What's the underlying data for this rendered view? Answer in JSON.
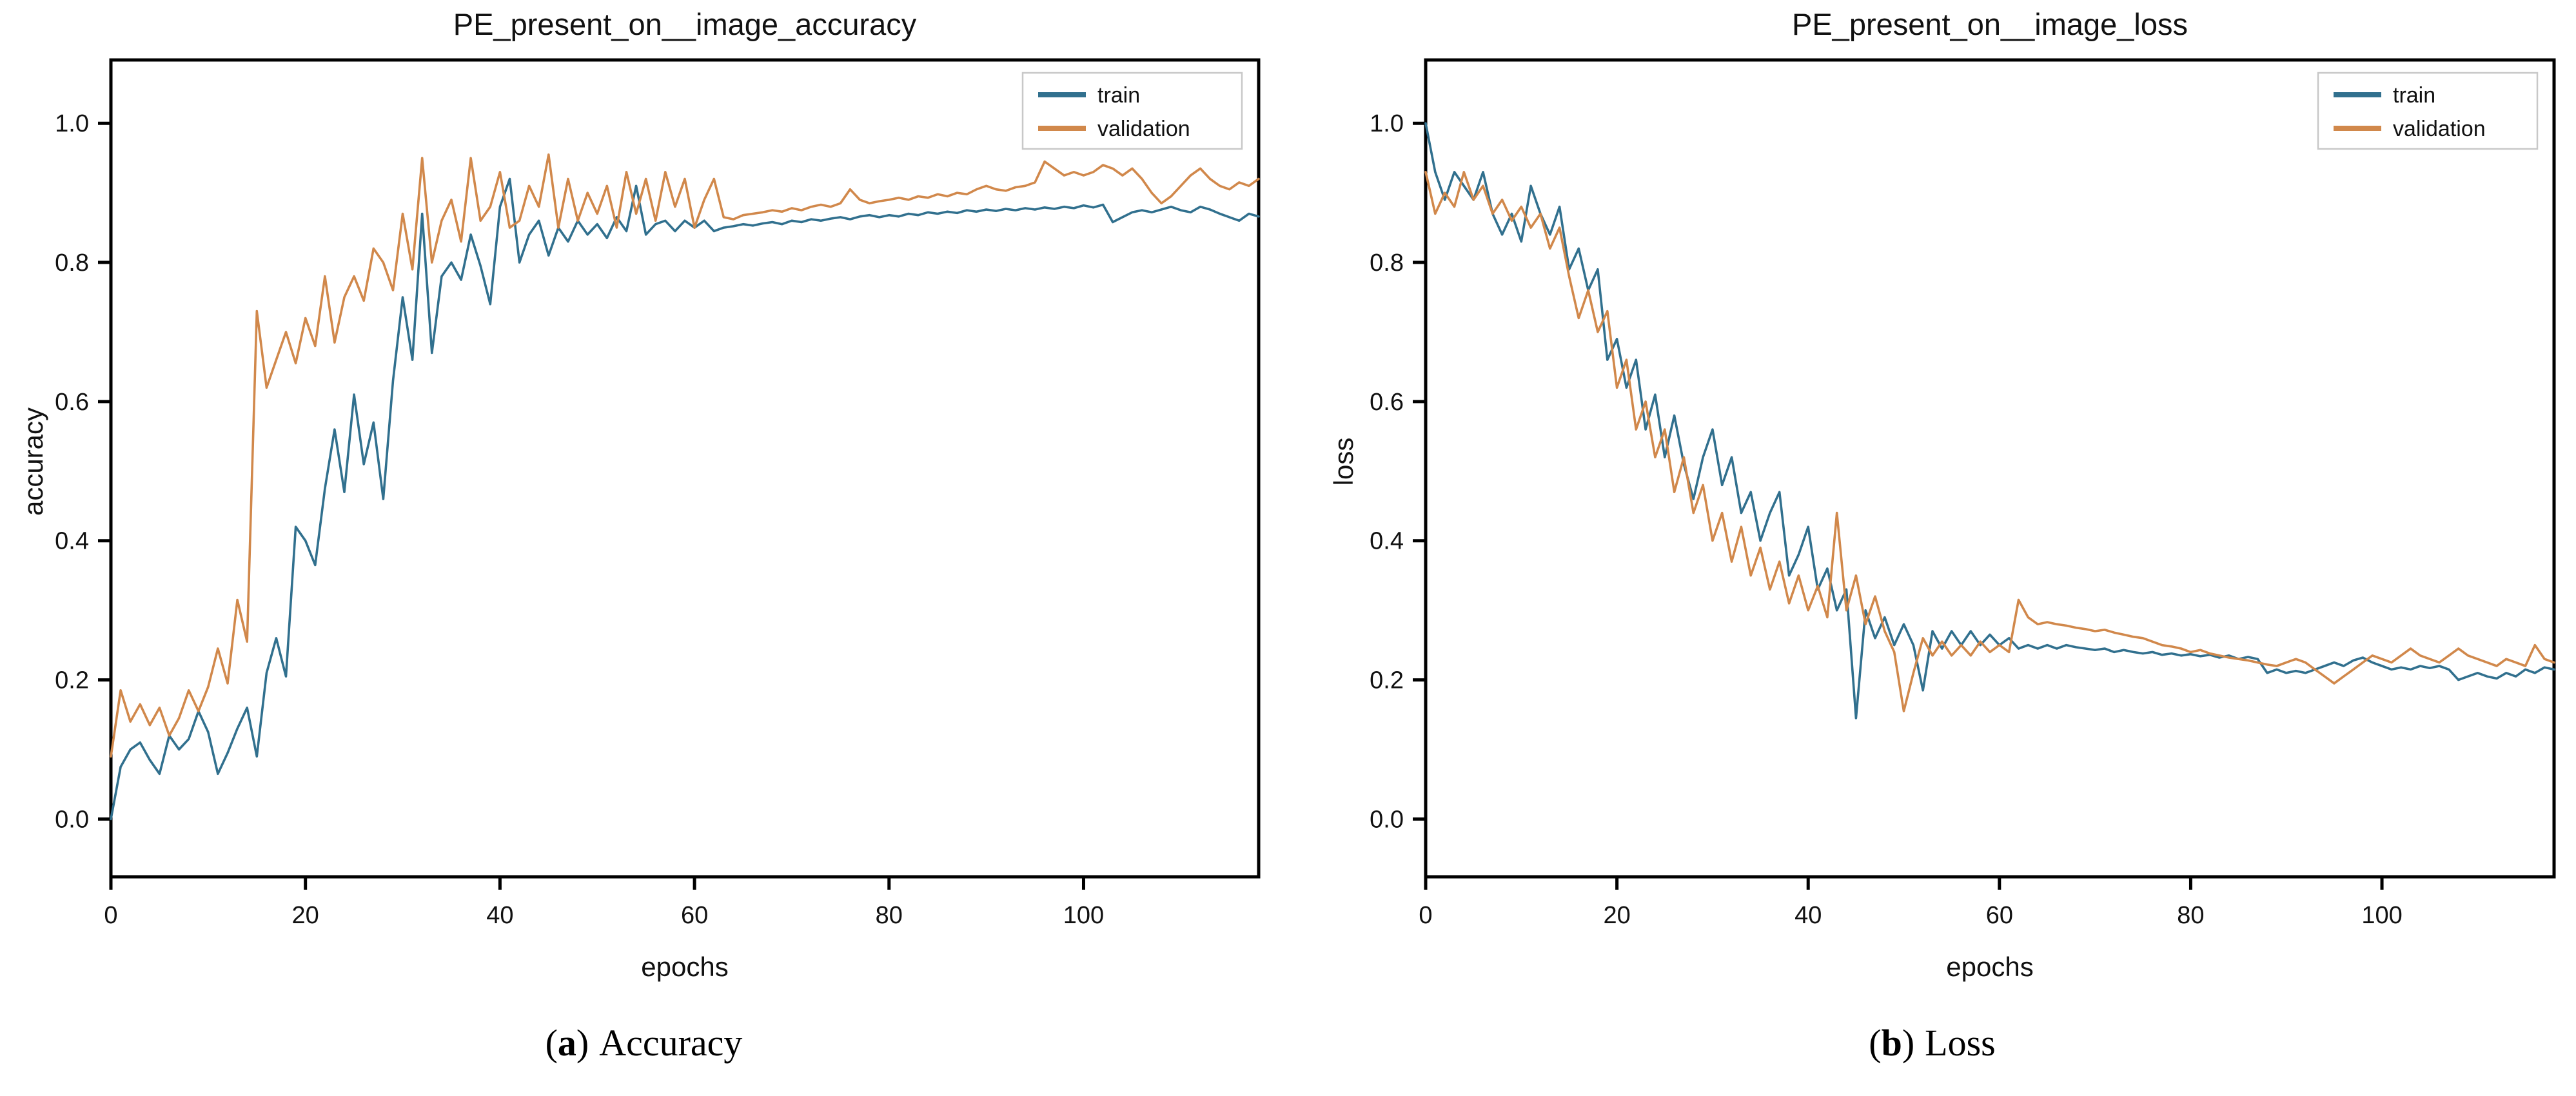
{
  "figure": {
    "panels": [
      {
        "caption": {
          "open": "(",
          "marker": "a",
          "close": ")",
          "label": "Accuracy"
        }
      },
      {
        "caption": {
          "open": "(",
          "marker": "b",
          "close": ")",
          "label": "Loss"
        }
      }
    ]
  },
  "chart_data": [
    {
      "type": "line",
      "title": "PE_present_on__image_accuracy",
      "xlabel": "epochs",
      "ylabel": "accuracy",
      "x_min": 0,
      "x_max": 118,
      "x_unit": "epoch index, one point per epoch",
      "xticks": [
        0,
        20,
        40,
        60,
        80,
        100
      ],
      "yticks": [
        0.0,
        0.2,
        0.4,
        0.6,
        0.8,
        1.0
      ],
      "ytick_labels": [
        "0.0",
        "0.2",
        "0.4",
        "0.6",
        "0.8",
        "1.0"
      ],
      "ylim": [
        -0.083,
        1.091
      ],
      "grid": false,
      "legend_position": "upper right",
      "legend_labels": [
        "train",
        "validation"
      ],
      "series": [
        {
          "name": "train",
          "color": "#31708e",
          "values": [
            0.0,
            0.075,
            0.1,
            0.11,
            0.085,
            0.065,
            0.12,
            0.1,
            0.115,
            0.155,
            0.125,
            0.065,
            0.095,
            0.13,
            0.16,
            0.09,
            0.21,
            0.26,
            0.205,
            0.42,
            0.4,
            0.365,
            0.475,
            0.56,
            0.47,
            0.61,
            0.51,
            0.57,
            0.46,
            0.63,
            0.75,
            0.66,
            0.87,
            0.67,
            0.78,
            0.8,
            0.775,
            0.84,
            0.795,
            0.74,
            0.88,
            0.92,
            0.8,
            0.84,
            0.86,
            0.81,
            0.85,
            0.83,
            0.86,
            0.84,
            0.855,
            0.835,
            0.865,
            0.845,
            0.91,
            0.84,
            0.855,
            0.86,
            0.845,
            0.86,
            0.85,
            0.86,
            0.845,
            0.85,
            0.852,
            0.855,
            0.853,
            0.856,
            0.858,
            0.855,
            0.86,
            0.858,
            0.862,
            0.86,
            0.863,
            0.865,
            0.862,
            0.866,
            0.868,
            0.865,
            0.868,
            0.866,
            0.87,
            0.868,
            0.872,
            0.87,
            0.873,
            0.871,
            0.875,
            0.873,
            0.876,
            0.874,
            0.877,
            0.875,
            0.878,
            0.876,
            0.879,
            0.877,
            0.88,
            0.878,
            0.882,
            0.879,
            0.883,
            0.858,
            0.865,
            0.872,
            0.875,
            0.872,
            0.876,
            0.88,
            0.875,
            0.872,
            0.88,
            0.876,
            0.87,
            0.865,
            0.86,
            0.87,
            0.866
          ]
        },
        {
          "name": "validation",
          "color": "#d1884b",
          "values": [
            0.09,
            0.185,
            0.14,
            0.165,
            0.135,
            0.16,
            0.12,
            0.145,
            0.185,
            0.155,
            0.19,
            0.245,
            0.195,
            0.315,
            0.255,
            0.73,
            0.62,
            0.66,
            0.7,
            0.655,
            0.72,
            0.68,
            0.78,
            0.685,
            0.75,
            0.78,
            0.745,
            0.82,
            0.8,
            0.76,
            0.87,
            0.79,
            0.95,
            0.8,
            0.86,
            0.89,
            0.83,
            0.95,
            0.86,
            0.88,
            0.93,
            0.85,
            0.86,
            0.91,
            0.88,
            0.955,
            0.85,
            0.92,
            0.86,
            0.9,
            0.87,
            0.91,
            0.85,
            0.93,
            0.87,
            0.92,
            0.86,
            0.93,
            0.88,
            0.92,
            0.85,
            0.89,
            0.92,
            0.865,
            0.862,
            0.868,
            0.87,
            0.872,
            0.875,
            0.873,
            0.878,
            0.875,
            0.88,
            0.883,
            0.88,
            0.885,
            0.905,
            0.89,
            0.885,
            0.888,
            0.89,
            0.893,
            0.89,
            0.895,
            0.893,
            0.898,
            0.895,
            0.9,
            0.898,
            0.905,
            0.91,
            0.905,
            0.903,
            0.908,
            0.91,
            0.915,
            0.945,
            0.935,
            0.925,
            0.93,
            0.925,
            0.93,
            0.94,
            0.935,
            0.925,
            0.935,
            0.92,
            0.9,
            0.885,
            0.895,
            0.91,
            0.925,
            0.935,
            0.92,
            0.91,
            0.905,
            0.915,
            0.91,
            0.92
          ]
        }
      ]
    },
    {
      "type": "line",
      "title": "PE_present_on__image_loss",
      "xlabel": "epochs",
      "ylabel": "loss",
      "x_min": 0,
      "x_max": 118,
      "x_unit": "epoch index, one point per epoch",
      "xticks": [
        0,
        20,
        40,
        60,
        80,
        100
      ],
      "yticks": [
        0.0,
        0.2,
        0.4,
        0.6,
        0.8,
        1.0
      ],
      "ytick_labels": [
        "0.0",
        "0.2",
        "0.4",
        "0.6",
        "0.8",
        "1.0"
      ],
      "ylim": [
        -0.083,
        1.091
      ],
      "grid": false,
      "legend_position": "upper right",
      "legend_labels": [
        "train",
        "validation"
      ],
      "series": [
        {
          "name": "train",
          "color": "#31708e",
          "values": [
            1.0,
            0.93,
            0.89,
            0.93,
            0.91,
            0.89,
            0.93,
            0.87,
            0.84,
            0.87,
            0.83,
            0.91,
            0.87,
            0.84,
            0.88,
            0.79,
            0.82,
            0.76,
            0.79,
            0.66,
            0.69,
            0.62,
            0.66,
            0.56,
            0.61,
            0.52,
            0.58,
            0.51,
            0.46,
            0.52,
            0.56,
            0.48,
            0.52,
            0.44,
            0.47,
            0.4,
            0.44,
            0.47,
            0.35,
            0.38,
            0.42,
            0.33,
            0.36,
            0.3,
            0.33,
            0.145,
            0.3,
            0.26,
            0.29,
            0.25,
            0.28,
            0.25,
            0.185,
            0.27,
            0.245,
            0.27,
            0.25,
            0.27,
            0.25,
            0.265,
            0.25,
            0.26,
            0.245,
            0.25,
            0.245,
            0.25,
            0.245,
            0.25,
            0.247,
            0.245,
            0.243,
            0.245,
            0.24,
            0.243,
            0.24,
            0.238,
            0.24,
            0.236,
            0.238,
            0.235,
            0.237,
            0.234,
            0.236,
            0.232,
            0.235,
            0.23,
            0.233,
            0.23,
            0.21,
            0.215,
            0.21,
            0.213,
            0.21,
            0.215,
            0.22,
            0.225,
            0.22,
            0.228,
            0.232,
            0.225,
            0.22,
            0.215,
            0.218,
            0.215,
            0.22,
            0.217,
            0.22,
            0.215,
            0.2,
            0.205,
            0.21,
            0.205,
            0.202,
            0.21,
            0.205,
            0.215,
            0.21,
            0.218,
            0.215
          ]
        },
        {
          "name": "validation",
          "color": "#d1884b",
          "values": [
            0.93,
            0.87,
            0.9,
            0.88,
            0.93,
            0.89,
            0.91,
            0.87,
            0.89,
            0.86,
            0.88,
            0.85,
            0.87,
            0.82,
            0.85,
            0.78,
            0.72,
            0.76,
            0.7,
            0.73,
            0.62,
            0.66,
            0.56,
            0.6,
            0.52,
            0.56,
            0.47,
            0.52,
            0.44,
            0.48,
            0.4,
            0.44,
            0.37,
            0.42,
            0.35,
            0.39,
            0.33,
            0.37,
            0.31,
            0.35,
            0.3,
            0.335,
            0.29,
            0.44,
            0.3,
            0.35,
            0.28,
            0.32,
            0.27,
            0.24,
            0.155,
            0.21,
            0.26,
            0.235,
            0.255,
            0.235,
            0.25,
            0.235,
            0.255,
            0.24,
            0.25,
            0.24,
            0.315,
            0.29,
            0.28,
            0.283,
            0.28,
            0.278,
            0.275,
            0.273,
            0.27,
            0.272,
            0.268,
            0.265,
            0.262,
            0.26,
            0.255,
            0.25,
            0.248,
            0.245,
            0.24,
            0.243,
            0.238,
            0.235,
            0.232,
            0.23,
            0.228,
            0.225,
            0.222,
            0.22,
            0.225,
            0.23,
            0.225,
            0.215,
            0.205,
            0.195,
            0.205,
            0.215,
            0.225,
            0.235,
            0.23,
            0.225,
            0.235,
            0.245,
            0.235,
            0.23,
            0.225,
            0.235,
            0.245,
            0.235,
            0.23,
            0.225,
            0.22,
            0.23,
            0.225,
            0.22,
            0.25,
            0.23,
            0.225
          ]
        }
      ]
    }
  ]
}
